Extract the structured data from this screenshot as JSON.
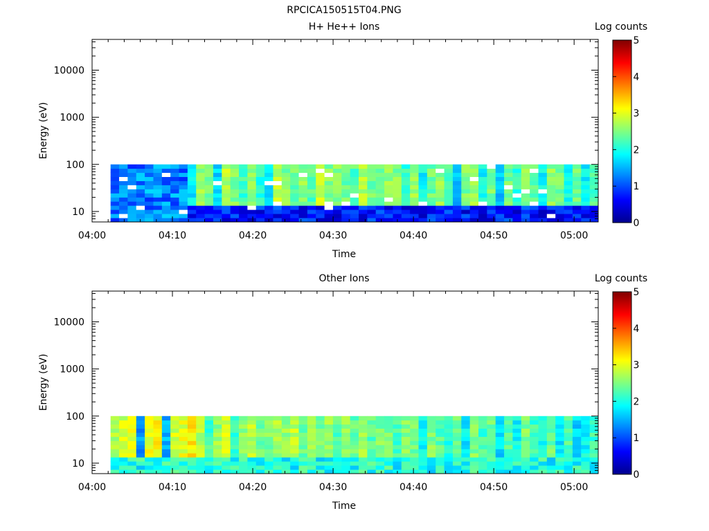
{
  "figure": {
    "title": "RPCICA150515T04.PNG"
  },
  "colorbar": {
    "label": "Log counts",
    "ticks": [
      "0",
      "1",
      "2",
      "3",
      "4",
      "5"
    ],
    "range": [
      0,
      5
    ],
    "colormap": "jet",
    "colors": [
      "#00008f",
      "#0000ff",
      "#0080ff",
      "#00ffff",
      "#80ff80",
      "#ffff00",
      "#ff8000",
      "#ff0000",
      "#800000"
    ]
  },
  "chart_data": [
    {
      "type": "heatmap",
      "title": "H+ He++ Ions",
      "xlabel": "Time",
      "ylabel": "Energy (eV)",
      "x_ticks": [
        "04:00",
        "04:10",
        "04:20",
        "04:30",
        "04:40",
        "04:50",
        "05:00"
      ],
      "y_ticks": [
        "10",
        "100",
        "1000",
        "10000"
      ],
      "yscale": "log",
      "ylim": [
        6,
        45000
      ],
      "xlim_minutes": [
        0,
        63
      ],
      "data_time_range_minutes": [
        2.3,
        63
      ],
      "data_energy_range_eV": [
        6,
        100
      ],
      "time_columns": 57,
      "energy_rows": 14,
      "column_level": [
        0.9,
        1.5,
        0.7,
        1.6,
        0.8,
        1.5,
        0.7,
        1.6,
        1.2,
        1.8,
        2.6,
        2.5,
        1.7,
        2.8,
        2.5,
        2.2,
        2.6,
        2.1,
        1.8,
        2.8,
        2.5,
        2.4,
        2.6,
        2.3,
        2.8,
        2.5,
        2.6,
        2.4,
        2.3,
        2.7,
        2.4,
        2.5,
        2.6,
        2.5,
        2.1,
        2.6,
        1.9,
        2.4,
        2.6,
        2.2,
        1.6,
        2.5,
        2.6,
        1.9,
        2.5,
        1.6,
        2.4,
        2.1,
        2.6,
        2.3,
        1.9,
        2.6,
        2.5,
        2.0,
        2.4,
        1.8,
        2.3
      ],
      "low_energy_band_level": 0.7,
      "low_energy_band_eV": [
        6,
        13
      ],
      "low_activity_until_minutes": 12,
      "gap_color": "#ffffff"
    },
    {
      "type": "heatmap",
      "title": "Other Ions",
      "xlabel": "Time",
      "ylabel": "Energy (eV)",
      "x_ticks": [
        "04:00",
        "04:10",
        "04:20",
        "04:30",
        "04:40",
        "04:50",
        "05:00"
      ],
      "y_ticks": [
        "10",
        "100",
        "1000",
        "10000"
      ],
      "yscale": "log",
      "ylim": [
        6,
        45000
      ],
      "xlim_minutes": [
        0,
        63
      ],
      "data_time_range_minutes": [
        2.3,
        63
      ],
      "data_energy_range_eV": [
        6,
        100
      ],
      "time_columns": 57,
      "energy_rows": 14,
      "column_level": [
        2.7,
        2.9,
        3.0,
        1.4,
        3.0,
        3.1,
        1.5,
        2.9,
        3.0,
        3.2,
        2.8,
        2.2,
        2.6,
        2.9,
        2.1,
        2.6,
        2.8,
        2.4,
        2.5,
        2.7,
        2.6,
        2.8,
        2.4,
        2.7,
        2.5,
        2.6,
        2.3,
        2.6,
        2.4,
        2.7,
        2.3,
        2.5,
        2.4,
        2.2,
        2.6,
        2.4,
        1.9,
        2.5,
        2.3,
        2.0,
        2.4,
        1.8,
        2.5,
        2.2,
        2.4,
        1.7,
        2.3,
        1.9,
        2.5,
        2.2,
        2.0,
        2.4,
        1.8,
        2.3,
        1.7,
        1.9,
        2.2
      ],
      "low_energy_band_level": 2.0,
      "low_energy_band_eV": [
        6,
        13
      ],
      "low_activity_until_minutes": 0,
      "gap_color": "#ffffff"
    }
  ]
}
